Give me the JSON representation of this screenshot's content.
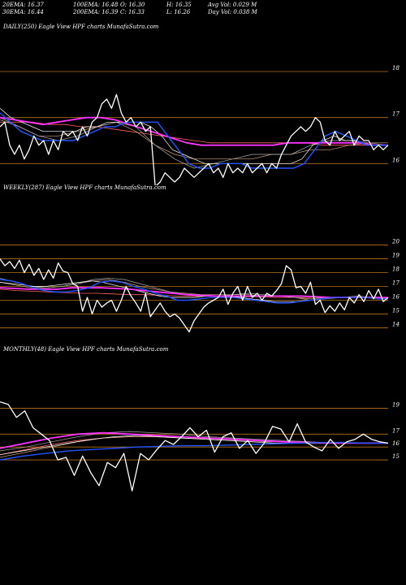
{
  "header": {
    "row1": [
      "20EMA: 16.37",
      "100EMA: 16.48",
      "O: 16.30",
      "H: 16.35",
      "Avg Vol: 0.029 M"
    ],
    "row2": [
      "30EMA: 16.44",
      "200EMA: 16.39",
      "C: 16.33",
      "L: 16.26",
      "Day Vol: 0.038 M"
    ]
  },
  "colors": {
    "background": "#000000",
    "price": "#ffffff",
    "ema20": "#2255ff",
    "ema30": "#ffffff",
    "ema100": "#ff33ff",
    "ema200": "#ff6060",
    "gridline": "#b8721a",
    "ma_gray": "#aaaaaa",
    "ma_tan": "#c8a080"
  },
  "chart_data": [
    {
      "type": "line",
      "label": "DAILY(250) Eagle   View  HPF charts MunafaSutra.com",
      "yticks": [
        16,
        17,
        18
      ],
      "ylim": [
        15.6,
        18.6
      ],
      "series": [
        {
          "name": "price",
          "values": [
            16.8,
            16.9,
            16.4,
            16.2,
            16.4,
            16.1,
            16.3,
            16.6,
            16.4,
            16.5,
            16.2,
            16.5,
            16.3,
            16.7,
            16.6,
            16.7,
            16.5,
            16.8,
            16.6,
            16.9,
            17.0,
            17.3,
            17.4,
            17.2,
            17.5,
            17.1,
            16.9,
            17.0,
            16.8,
            16.9,
            16.7,
            16.8,
            15.5,
            15.6,
            15.8,
            15.7,
            15.6,
            15.7,
            15.9,
            15.8,
            15.7,
            15.8,
            15.9,
            16.0,
            15.8,
            15.9,
            15.7,
            16.0,
            15.8,
            15.9,
            15.8,
            16.0,
            15.8,
            15.9,
            16.0,
            15.8,
            16.0,
            15.9,
            16.2,
            16.4,
            16.6,
            16.7,
            16.8,
            16.7,
            16.8,
            17.0,
            16.9,
            16.5,
            16.4,
            16.7,
            16.5,
            16.6,
            16.7,
            16.4,
            16.6,
            16.5,
            16.5,
            16.3,
            16.4,
            16.3,
            16.4
          ]
        },
        {
          "name": "ema20",
          "values": [
            17.1,
            16.9,
            16.7,
            16.6,
            16.5,
            16.5,
            16.5,
            16.5,
            16.6,
            16.7,
            16.8,
            16.8,
            16.9,
            16.9,
            16.9,
            16.9,
            16.6,
            16.3,
            16.0,
            15.9,
            15.9,
            16.0,
            16.0,
            16.0,
            15.9,
            15.9,
            15.9,
            15.9,
            15.9,
            16.0,
            16.3,
            16.6,
            16.7,
            16.6,
            16.5,
            16.4,
            16.4,
            16.4
          ]
        },
        {
          "name": "ema30",
          "values": [
            17.2,
            17.0,
            16.9,
            16.8,
            16.7,
            16.7,
            16.7,
            16.7,
            16.8,
            16.8,
            16.9,
            16.9,
            16.9,
            16.9,
            16.8,
            16.6,
            16.3,
            16.2,
            16.1,
            16.0,
            16.0,
            16.0,
            16.0,
            16.0,
            16.0,
            16.0,
            16.0,
            16.0,
            16.1,
            16.4,
            16.5,
            16.6,
            16.5,
            16.5,
            16.4,
            16.4,
            16.4
          ]
        },
        {
          "name": "ema100",
          "values": [
            17.0,
            16.95,
            16.9,
            16.85,
            16.9,
            16.95,
            17.0,
            17.0,
            16.95,
            16.85,
            16.75,
            16.65,
            16.55,
            16.45,
            16.4,
            16.4,
            16.4,
            16.4,
            16.4,
            16.4,
            16.45,
            16.45,
            16.45,
            16.45,
            16.45,
            16.45,
            16.4,
            16.4
          ]
        },
        {
          "name": "ema200",
          "values": [
            16.9,
            16.9,
            16.9,
            16.85,
            16.85,
            16.8,
            16.8,
            16.75,
            16.7,
            16.65,
            16.6,
            16.55,
            16.5,
            16.45,
            16.45,
            16.45,
            16.45,
            16.45,
            16.45,
            16.45,
            16.4,
            16.4,
            16.4,
            16.4,
            16.4
          ]
        },
        {
          "name": "ma_gray",
          "values": [
            16.95,
            16.8,
            16.6,
            16.5,
            16.6,
            16.8,
            16.9,
            16.8,
            16.4,
            16.1,
            15.9,
            16.0,
            16.1,
            16.2,
            16.2,
            16.2,
            16.4,
            16.5,
            16.5,
            16.45,
            16.4
          ]
        },
        {
          "name": "ma_tan",
          "values": [
            17.0,
            16.8,
            16.6,
            16.6,
            16.7,
            16.8,
            16.9,
            16.7,
            16.4,
            16.2,
            16.1,
            16.1,
            16.1,
            16.1,
            16.2,
            16.2,
            16.3,
            16.3,
            16.4,
            16.45,
            16.45
          ]
        }
      ]
    },
    {
      "type": "line",
      "label": "WEEKLY(287) Eagle   View  HPF charts MunafaSutra.com",
      "yticks": [
        14,
        15,
        16,
        17,
        18,
        19,
        20
      ],
      "ylim": [
        13.2,
        20.8
      ],
      "series": [
        {
          "name": "price",
          "values": [
            19.0,
            18.5,
            18.8,
            18.3,
            18.9,
            18.0,
            18.6,
            17.8,
            18.3,
            17.5,
            18.2,
            17.6,
            18.7,
            18.1,
            18.0,
            17.2,
            17.0,
            15.2,
            16.2,
            15.0,
            16.0,
            15.5,
            15.8,
            16.0,
            15.2,
            16.0,
            17.0,
            16.3,
            15.8,
            15.2,
            16.5,
            14.8,
            15.3,
            15.8,
            15.2,
            14.8,
            15.0,
            14.7,
            14.2,
            13.7,
            14.5,
            15.0,
            15.5,
            15.8,
            16.0,
            16.2,
            16.8,
            15.7,
            16.5,
            17.0,
            16.0,
            17.0,
            16.2,
            16.5,
            16.0,
            16.5,
            16.3,
            16.7,
            17.2,
            18.5,
            18.2,
            16.9,
            17.0,
            16.5,
            17.3,
            15.7,
            16.0,
            15.1,
            15.6,
            15.2,
            15.8,
            15.3,
            16.2,
            15.8,
            16.4,
            15.9,
            16.7,
            16.1,
            16.8,
            15.9,
            16.2
          ]
        },
        {
          "name": "ema20",
          "values": [
            17.5,
            17.4,
            17.2,
            16.9,
            16.7,
            16.6,
            16.6,
            16.7,
            16.9,
            17.3,
            17.4,
            17.3,
            17.0,
            16.8,
            16.5,
            16.3,
            16.0,
            16.0,
            16.1,
            16.2,
            16.2,
            16.2,
            16.1,
            16.0,
            15.9,
            15.8,
            15.8,
            15.9,
            16.0,
            16.1,
            16.2,
            16.2,
            16.2,
            16.2,
            16.1,
            16.1
          ]
        },
        {
          "name": "ema30",
          "values": [
            17.3,
            17.2,
            17.1,
            17.0,
            17.0,
            17.1,
            17.2,
            17.3,
            17.4,
            17.3,
            17.1,
            16.9,
            16.7,
            16.5,
            16.3,
            16.2,
            16.2,
            16.2,
            16.3,
            16.3,
            16.3,
            16.2,
            16.1,
            16.0,
            15.9,
            15.9,
            15.9,
            16.0,
            16.1,
            16.2,
            16.2,
            16.2,
            16.2,
            16.2,
            16.2
          ]
        },
        {
          "name": "ema100",
          "values": [
            16.9,
            16.85,
            16.8,
            16.8,
            16.8,
            16.9,
            16.9,
            16.9,
            16.85,
            16.8,
            16.7,
            16.6,
            16.5,
            16.4,
            16.35,
            16.3,
            16.3,
            16.3,
            16.3,
            16.3,
            16.3,
            16.3,
            16.25,
            16.2,
            16.2,
            16.2,
            16.2,
            16.2
          ]
        },
        {
          "name": "ema200",
          "values": [
            16.8,
            16.7,
            16.65,
            16.6,
            16.55,
            16.5,
            16.5,
            16.45,
            16.4,
            16.4,
            16.35,
            16.3,
            16.3,
            16.3,
            16.25,
            16.25,
            16.25,
            16.2,
            16.2,
            16.2,
            16.2,
            16.2,
            16.2,
            16.2,
            16.2
          ]
        },
        {
          "name": "ma_gray",
          "values": [
            17.6,
            17.3,
            17.0,
            16.9,
            17.0,
            17.2,
            17.5,
            17.6,
            17.5,
            17.2,
            16.9,
            16.6,
            16.4,
            16.3,
            16.3,
            16.4,
            16.5,
            16.4,
            16.3,
            16.2,
            16.0,
            16.1,
            16.2,
            16.3,
            16.2,
            16.1
          ]
        },
        {
          "name": "ma_tan",
          "values": [
            17.3,
            17.1,
            16.9,
            16.9,
            17.0,
            17.2,
            17.4,
            17.5,
            17.3,
            17.0,
            16.8,
            16.6,
            16.5,
            16.4,
            16.4,
            16.4,
            16.4,
            16.3,
            16.3,
            16.2,
            16.1,
            16.2,
            16.2,
            16.2,
            16.2,
            16.1
          ]
        }
      ]
    },
    {
      "type": "line",
      "label": "MONTHLY(48) Eagle   View  HPF charts MunafaSutra.com",
      "yticks": [
        15,
        16,
        17,
        19
      ],
      "ylim": [
        11.6,
        20.8
      ],
      "series": [
        {
          "name": "price",
          "values": [
            19.5,
            19.3,
            18.3,
            18.8,
            17.5,
            17.0,
            16.5,
            15.0,
            15.2,
            13.8,
            15.3,
            14.0,
            13.0,
            14.8,
            14.4,
            15.5,
            12.6,
            15.5,
            15.0,
            15.8,
            16.5,
            16.2,
            16.8,
            17.5,
            16.8,
            17.3,
            15.6,
            16.8,
            17.1,
            15.9,
            16.5,
            15.5,
            16.3,
            17.6,
            17.4,
            16.4,
            17.8,
            16.4,
            16.0,
            15.7,
            16.6,
            15.9,
            16.4,
            16.6,
            17.0,
            16.6,
            16.4,
            16.3
          ]
        },
        {
          "name": "ema20",
          "values": [
            15.0,
            15.3,
            15.5,
            15.7,
            15.8,
            15.9,
            16.0,
            16.05,
            16.1,
            16.1,
            16.15,
            16.2,
            16.25,
            16.3,
            16.35,
            16.35,
            16.3,
            16.3
          ]
        },
        {
          "name": "ema30",
          "values": [
            15.4,
            15.7,
            16.0,
            16.3,
            16.6,
            16.8,
            16.9,
            16.8,
            16.7,
            16.6,
            16.5,
            16.4,
            16.3,
            16.3,
            16.3,
            16.3,
            16.3,
            16.3
          ]
        },
        {
          "name": "ema100",
          "values": [
            15.9,
            16.3,
            16.7,
            17.0,
            17.1,
            17.0,
            16.9,
            16.8,
            16.7,
            16.6,
            16.5,
            16.4,
            16.35,
            16.3,
            16.3,
            16.3
          ]
        },
        {
          "name": "ema200",
          "values": [
            15.4,
            15.8,
            16.2,
            16.5,
            16.7,
            16.8,
            16.8,
            16.7,
            16.65,
            16.6,
            16.5,
            16.4,
            16.35,
            16.3,
            16.3,
            16.3
          ]
        },
        {
          "name": "ma_gray",
          "values": [
            15.7,
            16.0,
            16.4,
            16.8,
            17.1,
            17.2,
            17.1,
            17.0,
            16.8,
            16.7,
            16.6,
            16.5,
            16.4,
            16.3,
            16.3,
            16.3
          ]
        },
        {
          "name": "ma_tan",
          "values": [
            15.2,
            15.6,
            16.0,
            16.4,
            16.7,
            16.8,
            16.8,
            16.7,
            16.6,
            16.5,
            16.4,
            16.4,
            16.3,
            16.3,
            16.3,
            16.3
          ]
        }
      ]
    }
  ]
}
